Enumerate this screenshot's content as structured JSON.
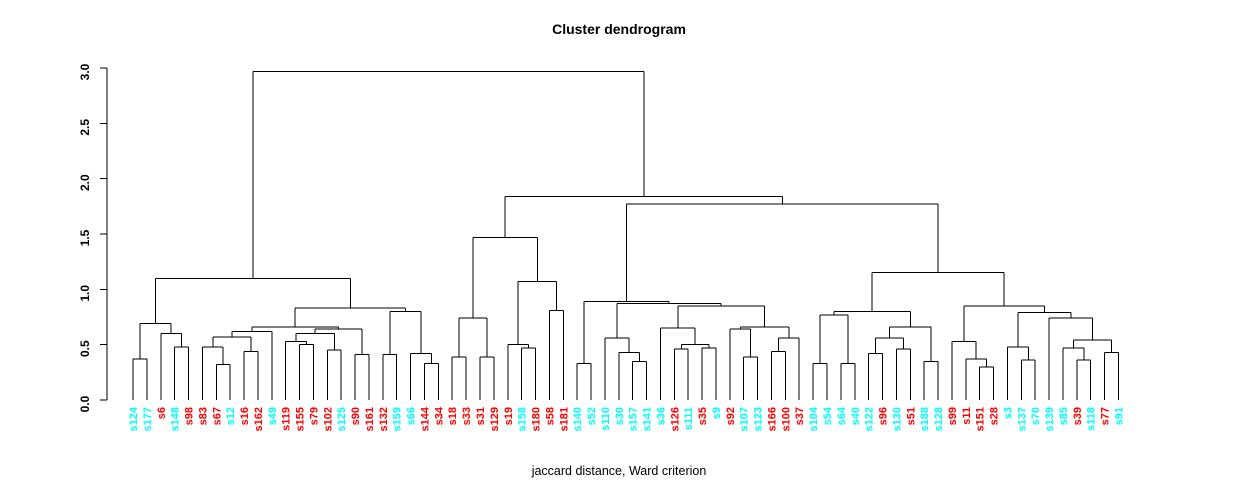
{
  "chart_data": {
    "type": "dendrogram",
    "title": "Cluster dendrogram",
    "xlabel": "jaccard distance, Ward criterion",
    "ylabel": "",
    "ylim": [
      0.0,
      3.0
    ],
    "yticks": [
      0.0,
      0.5,
      1.0,
      1.5,
      2.0,
      2.5,
      3.0
    ],
    "n_leaves": 72,
    "grid": false,
    "palette": {
      "c": "#00ffff",
      "r": "#ff0000",
      "line": "#000000"
    },
    "leaves": [
      [
        "s124",
        "c"
      ],
      [
        "s177",
        "c"
      ],
      [
        "s6",
        "r"
      ],
      [
        "s148",
        "c"
      ],
      [
        "s98",
        "r"
      ],
      [
        "s83",
        "r"
      ],
      [
        "s67",
        "r"
      ],
      [
        "s12",
        "c"
      ],
      [
        "s16",
        "r"
      ],
      [
        "s162",
        "r"
      ],
      [
        "s49",
        "c"
      ],
      [
        "s119",
        "r"
      ],
      [
        "s155",
        "r"
      ],
      [
        "s79",
        "r"
      ],
      [
        "s102",
        "r"
      ],
      [
        "s125",
        "c"
      ],
      [
        "s90",
        "r"
      ],
      [
        "s161",
        "r"
      ],
      [
        "s132",
        "r"
      ],
      [
        "s159",
        "c"
      ],
      [
        "s66",
        "c"
      ],
      [
        "s144",
        "r"
      ],
      [
        "s34",
        "r"
      ],
      [
        "s18",
        "r"
      ],
      [
        "s33",
        "r"
      ],
      [
        "s31",
        "r"
      ],
      [
        "s129",
        "r"
      ],
      [
        "s19",
        "r"
      ],
      [
        "s158",
        "c"
      ],
      [
        "s180",
        "r"
      ],
      [
        "s58",
        "r"
      ],
      [
        "s181",
        "r"
      ],
      [
        "s140",
        "c"
      ],
      [
        "s52",
        "c"
      ],
      [
        "s110",
        "c"
      ],
      [
        "s30",
        "c"
      ],
      [
        "s157",
        "c"
      ],
      [
        "s141",
        "c"
      ],
      [
        "s36",
        "c"
      ],
      [
        "s126",
        "r"
      ],
      [
        "s111",
        "c"
      ],
      [
        "s35",
        "r"
      ],
      [
        "s9",
        "c"
      ],
      [
        "s92",
        "r"
      ],
      [
        "s107",
        "c"
      ],
      [
        "s123",
        "c"
      ],
      [
        "s166",
        "r"
      ],
      [
        "s100",
        "r"
      ],
      [
        "s37",
        "r"
      ],
      [
        "s104",
        "c"
      ],
      [
        "s54",
        "c"
      ],
      [
        "s64",
        "c"
      ],
      [
        "s40",
        "c"
      ],
      [
        "s122",
        "c"
      ],
      [
        "s96",
        "r"
      ],
      [
        "s130",
        "c"
      ],
      [
        "s51",
        "r"
      ],
      [
        "s188",
        "c"
      ],
      [
        "s128",
        "c"
      ],
      [
        "s99",
        "r"
      ],
      [
        "s11",
        "r"
      ],
      [
        "s151",
        "r"
      ],
      [
        "s28",
        "r"
      ],
      [
        "s3",
        "c"
      ],
      [
        "s137",
        "c"
      ],
      [
        "s70",
        "c"
      ],
      [
        "s139",
        "c"
      ],
      [
        "s85",
        "c"
      ],
      [
        "s39",
        "r"
      ],
      [
        "s118",
        "c"
      ],
      [
        "s77",
        "r"
      ],
      [
        "s91",
        "c"
      ]
    ],
    "tree": {
      "h": 2.97,
      "k": [
        {
          "h": 1.1,
          "k": [
            {
              "h": 0.69,
              "k": [
                {
                  "h": 0.37,
                  "k": [
                    "s124",
                    "s177"
                  ]
                },
                {
                  "h": 0.6,
                  "k": [
                    "s6",
                    {
                      "h": 0.48,
                      "k": [
                        "s148",
                        "s98"
                      ]
                    }
                  ]
                }
              ]
            },
            {
              "h": 0.83,
              "k": [
                {
                  "h": 0.66,
                  "k": [
                    {
                      "h": 0.62,
                      "k": [
                        {
                          "h": 0.57,
                          "k": [
                            {
                              "h": 0.48,
                              "k": [
                                "s83",
                                {
                                  "h": 0.32,
                                  "k": [
                                    "s67",
                                    "s12"
                                  ]
                                }
                              ]
                            },
                            {
                              "h": 0.44,
                              "k": [
                                "s16",
                                "s162"
                              ]
                            }
                          ]
                        },
                        "s49"
                      ]
                    },
                    {
                      "h": 0.64,
                      "k": [
                        {
                          "h": 0.6,
                          "k": [
                            {
                              "h": 0.53,
                              "k": [
                                "s119",
                                {
                                  "h": 0.5,
                                  "k": [
                                    "s155",
                                    "s79"
                                  ]
                                }
                              ]
                            },
                            {
                              "h": 0.45,
                              "k": [
                                "s102",
                                "s125"
                              ]
                            }
                          ]
                        },
                        {
                          "h": 0.41,
                          "k": [
                            "s90",
                            "s161"
                          ]
                        }
                      ]
                    }
                  ]
                },
                {
                  "h": 0.8,
                  "k": [
                    {
                      "h": 0.41,
                      "k": [
                        "s132",
                        "s159"
                      ]
                    },
                    {
                      "h": 0.42,
                      "k": [
                        "s66",
                        {
                          "h": 0.33,
                          "k": [
                            "s144",
                            "s34"
                          ]
                        }
                      ]
                    }
                  ]
                }
              ]
            }
          ]
        },
        {
          "h": 1.84,
          "k": [
            {
              "h": 1.47,
              "k": [
                {
                  "h": 0.74,
                  "k": [
                    {
                      "h": 0.39,
                      "k": [
                        "s18",
                        "s33"
                      ]
                    },
                    {
                      "h": 0.39,
                      "k": [
                        "s31",
                        "s129"
                      ]
                    }
                  ]
                },
                {
                  "h": 1.07,
                  "k": [
                    {
                      "h": 0.5,
                      "k": [
                        "s19",
                        {
                          "h": 0.47,
                          "k": [
                            "s158",
                            "s180"
                          ]
                        }
                      ]
                    },
                    {
                      "h": 0.81,
                      "k": [
                        "s58",
                        "s181"
                      ]
                    }
                  ]
                }
              ]
            },
            {
              "h": 1.77,
              "k": [
                {
                  "h": 0.89,
                  "k": [
                    {
                      "h": 0.33,
                      "k": [
                        "s140",
                        "s52"
                      ]
                    },
                    {
                      "h": 0.87,
                      "k": [
                        {
                          "h": 0.56,
                          "k": [
                            "s110",
                            {
                              "h": 0.43,
                              "k": [
                                "s30",
                                {
                                  "h": 0.35,
                                  "k": [
                                    "s157",
                                    "s141"
                                  ]
                                }
                              ]
                            }
                          ]
                        },
                        {
                          "h": 0.85,
                          "k": [
                            {
                              "h": 0.65,
                              "k": [
                                "s36",
                                {
                                  "h": 0.5,
                                  "k": [
                                    {
                                      "h": 0.46,
                                      "k": [
                                        "s126",
                                        "s111"
                                      ]
                                    },
                                    {
                                      "h": 0.47,
                                      "k": [
                                        "s35",
                                        "s9"
                                      ]
                                    }
                                  ]
                                }
                              ]
                            },
                            {
                              "h": 0.66,
                              "k": [
                                {
                                  "h": 0.64,
                                  "k": [
                                    "s92",
                                    {
                                      "h": 0.39,
                                      "k": [
                                        "s107",
                                        "s123"
                                      ]
                                    }
                                  ]
                                },
                                {
                                  "h": 0.56,
                                  "k": [
                                    {
                                      "h": 0.44,
                                      "k": [
                                        "s166",
                                        "s100"
                                      ]
                                    },
                                    "s37"
                                  ]
                                }
                              ]
                            }
                          ]
                        }
                      ]
                    }
                  ]
                },
                {
                  "h": 1.15,
                  "k": [
                    {
                      "h": 0.8,
                      "k": [
                        {
                          "h": 0.77,
                          "k": [
                            {
                              "h": 0.33,
                              "k": [
                                "s104",
                                "s54"
                              ]
                            },
                            {
                              "h": 0.33,
                              "k": [
                                "s64",
                                "s40"
                              ]
                            }
                          ]
                        },
                        {
                          "h": 0.66,
                          "k": [
                            {
                              "h": 0.56,
                              "k": [
                                {
                                  "h": 0.42,
                                  "k": [
                                    "s122",
                                    "s96"
                                  ]
                                },
                                {
                                  "h": 0.46,
                                  "k": [
                                    "s130",
                                    "s51"
                                  ]
                                }
                              ]
                            },
                            {
                              "h": 0.35,
                              "k": [
                                "s188",
                                "s128"
                              ]
                            }
                          ]
                        }
                      ]
                    },
                    {
                      "h": 0.85,
                      "k": [
                        {
                          "h": 0.53,
                          "k": [
                            "s99",
                            {
                              "h": 0.37,
                              "k": [
                                "s11",
                                {
                                  "h": 0.3,
                                  "k": [
                                    "s151",
                                    "s28"
                                  ]
                                }
                              ]
                            }
                          ]
                        },
                        {
                          "h": 0.79,
                          "k": [
                            {
                              "h": 0.48,
                              "k": [
                                "s3",
                                {
                                  "h": 0.36,
                                  "k": [
                                    "s137",
                                    "s70"
                                  ]
                                }
                              ]
                            },
                            {
                              "h": 0.74,
                              "k": [
                                "s139",
                                {
                                  "h": 0.54,
                                  "k": [
                                    {
                                      "h": 0.47,
                                      "k": [
                                        "s85",
                                        {
                                          "h": 0.36,
                                          "k": [
                                            "s39",
                                            "s118"
                                          ]
                                        }
                                      ]
                                    },
                                    {
                                      "h": 0.43,
                                      "k": [
                                        "s77",
                                        "s91"
                                      ]
                                    }
                                  ]
                                }
                              ]
                            }
                          ]
                        }
                      ]
                    }
                  ]
                }
              ]
            }
          ]
        }
      ]
    }
  }
}
